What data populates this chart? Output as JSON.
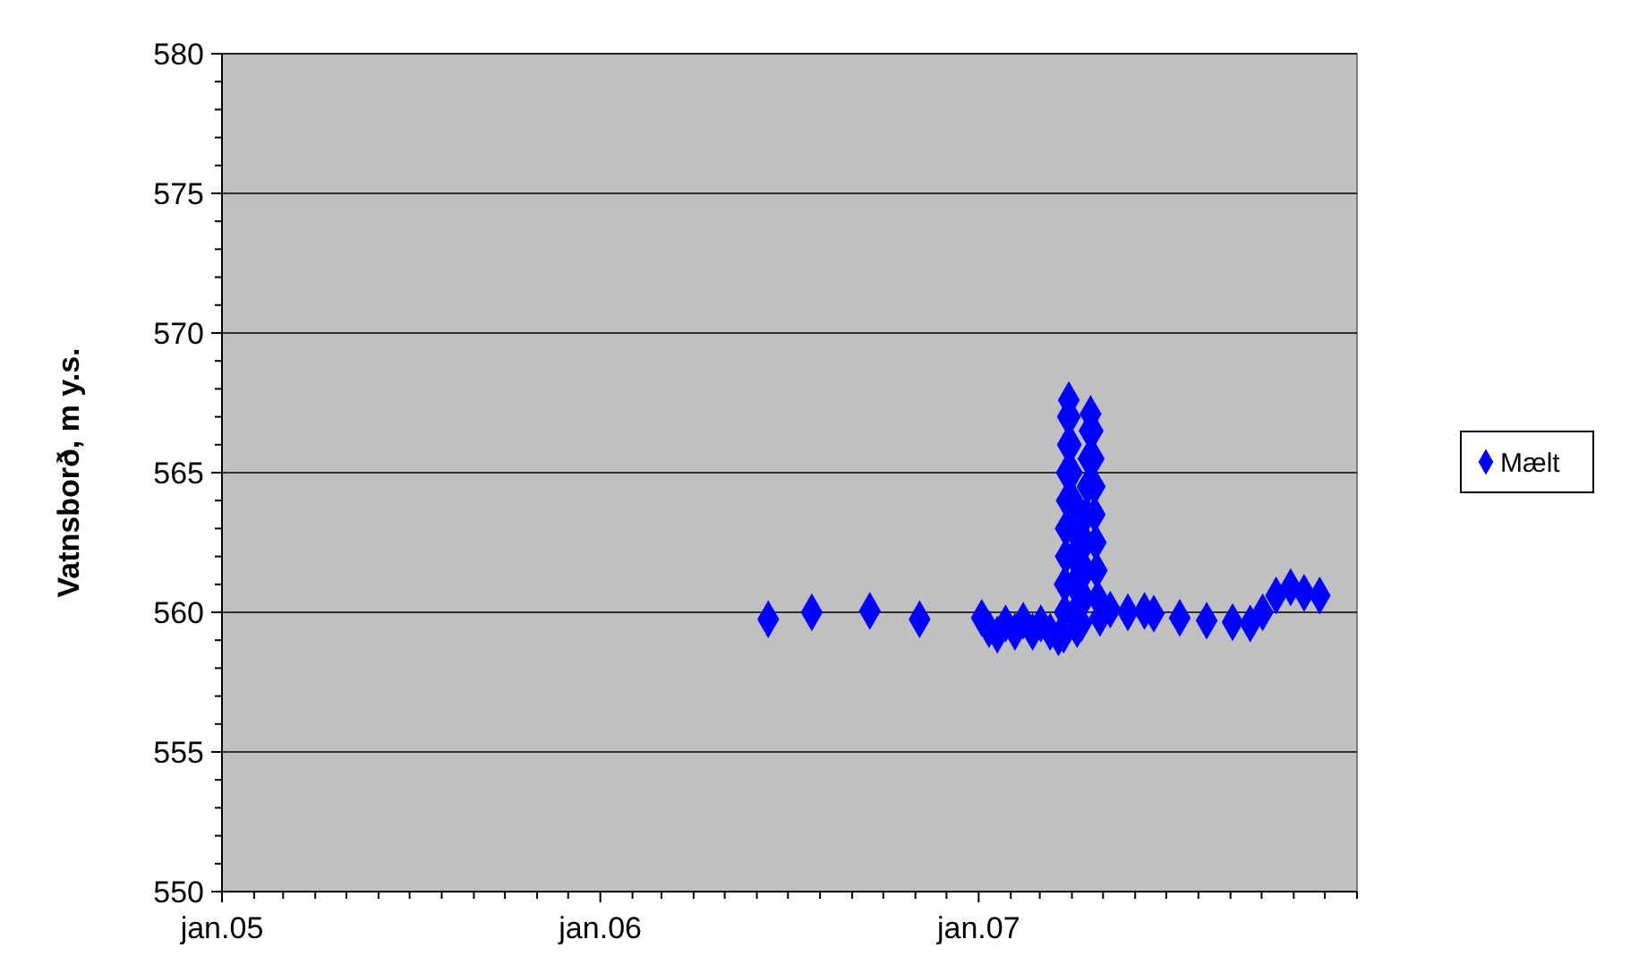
{
  "chart_data": {
    "type": "scatter",
    "ylabel": "Vatnsborð, m y.s.",
    "xlim": [
      "2005-01-01",
      "2008-01-01"
    ],
    "xticks": [
      {
        "value": "2005-01-01",
        "label": "jan.05"
      },
      {
        "value": "2005-02-01",
        "label": null
      },
      {
        "value": "2005-03-01",
        "label": null
      },
      {
        "value": "2005-04-01",
        "label": null
      },
      {
        "value": "2005-05-01",
        "label": null
      },
      {
        "value": "2005-06-01",
        "label": null
      },
      {
        "value": "2005-07-01",
        "label": null
      },
      {
        "value": "2005-08-01",
        "label": null
      },
      {
        "value": "2005-09-01",
        "label": null
      },
      {
        "value": "2005-10-01",
        "label": null
      },
      {
        "value": "2005-11-01",
        "label": null
      },
      {
        "value": "2005-12-01",
        "label": null
      },
      {
        "value": "2006-01-01",
        "label": "jan.06"
      },
      {
        "value": "2006-02-01",
        "label": null
      },
      {
        "value": "2006-03-01",
        "label": null
      },
      {
        "value": "2006-04-01",
        "label": null
      },
      {
        "value": "2006-05-01",
        "label": null
      },
      {
        "value": "2006-06-01",
        "label": null
      },
      {
        "value": "2006-07-01",
        "label": null
      },
      {
        "value": "2006-08-01",
        "label": null
      },
      {
        "value": "2006-09-01",
        "label": null
      },
      {
        "value": "2006-10-01",
        "label": null
      },
      {
        "value": "2006-11-01",
        "label": null
      },
      {
        "value": "2006-12-01",
        "label": null
      },
      {
        "value": "2007-01-01",
        "label": "jan.07"
      },
      {
        "value": "2007-02-01",
        "label": null
      },
      {
        "value": "2007-03-01",
        "label": null
      },
      {
        "value": "2007-04-01",
        "label": null
      },
      {
        "value": "2007-05-01",
        "label": null
      },
      {
        "value": "2007-06-01",
        "label": null
      },
      {
        "value": "2007-07-01",
        "label": null
      },
      {
        "value": "2007-08-01",
        "label": null
      },
      {
        "value": "2007-09-01",
        "label": null
      },
      {
        "value": "2007-10-01",
        "label": null
      },
      {
        "value": "2007-11-01",
        "label": null
      },
      {
        "value": "2007-12-01",
        "label": null
      },
      {
        "value": "2008-01-01",
        "label": null
      }
    ],
    "ylim": [
      550,
      580
    ],
    "yticks": [
      550,
      {
        "value": 551,
        "label": null
      },
      {
        "value": 552,
        "label": null
      },
      {
        "value": 553,
        "label": null
      },
      {
        "value": 554,
        "label": null
      },
      555,
      {
        "value": 556,
        "label": null
      },
      {
        "value": 557,
        "label": null
      },
      {
        "value": 558,
        "label": null
      },
      {
        "value": 559,
        "label": null
      },
      560,
      {
        "value": 561,
        "label": null
      },
      {
        "value": 562,
        "label": null
      },
      {
        "value": 563,
        "label": null
      },
      {
        "value": 564,
        "label": null
      },
      565,
      {
        "value": 566,
        "label": null
      },
      {
        "value": 567,
        "label": null
      },
      {
        "value": 568,
        "label": null
      },
      {
        "value": 569,
        "label": null
      },
      570,
      {
        "value": 571,
        "label": null
      },
      {
        "value": 572,
        "label": null
      },
      {
        "value": 573,
        "label": null
      },
      {
        "value": 574,
        "label": null
      },
      575,
      {
        "value": 576,
        "label": null
      },
      {
        "value": 577,
        "label": null
      },
      {
        "value": 578,
        "label": null
      },
      {
        "value": 579,
        "label": null
      },
      580
    ],
    "grid": "y",
    "legend": "right",
    "marker": "diamond",
    "series": [
      {
        "name": "Mælt",
        "color": "#0000ff",
        "x": [
          "2006-06-12",
          "2006-07-24",
          "2006-09-18",
          "2006-11-05",
          "2007-01-04",
          "2007-01-11",
          "2007-01-19",
          "2007-01-27",
          "2007-02-05",
          "2007-02-13",
          "2007-02-22",
          "2007-03-02",
          "2007-03-11",
          "2007-03-19",
          "2007-03-24",
          "2007-03-25",
          "2007-03-25",
          "2007-03-26",
          "2007-03-26",
          "2007-03-27",
          "2007-03-27",
          "2007-03-28",
          "2007-03-28",
          "2007-03-29",
          "2007-03-30",
          "2007-03-31",
          "2007-04-01",
          "2007-04-02",
          "2007-04-02",
          "2007-04-03",
          "2007-04-03",
          "2007-04-04",
          "2007-04-06",
          "2007-04-10",
          "2007-04-13",
          "2007-04-14",
          "2007-04-14",
          "2007-04-15",
          "2007-04-16",
          "2007-04-17",
          "2007-04-18",
          "2007-04-19",
          "2007-04-21",
          "2007-04-22",
          "2007-04-23",
          "2007-04-23",
          "2007-04-24",
          "2007-04-25",
          "2007-04-26",
          "2007-04-28",
          "2007-05-08",
          "2007-05-25",
          "2007-06-10",
          "2007-06-19",
          "2007-07-14",
          "2007-08-09",
          "2007-09-03",
          "2007-09-20",
          "2007-10-02",
          "2007-10-15",
          "2007-10-29",
          "2007-11-11",
          "2007-11-26"
        ],
        "values": [
          559.75,
          560.0,
          560.05,
          559.75,
          559.8,
          559.4,
          559.2,
          559.6,
          559.3,
          559.7,
          559.3,
          559.6,
          559.3,
          559.1,
          559.2,
          560.0,
          561,
          562,
          563,
          564,
          565,
          566,
          567,
          567.6,
          567.0,
          566,
          565,
          564,
          563,
          562,
          561,
          560,
          559.4,
          559.6,
          560.5,
          561.5,
          562.5,
          563.5,
          564.5,
          565.5,
          566.5,
          567.1,
          566.5,
          565.5,
          564.5,
          563.5,
          562.5,
          561.5,
          560.5,
          559.8,
          560.1,
          560.0,
          560.05,
          559.95,
          559.8,
          559.7,
          559.65,
          559.6,
          560.0,
          560.6,
          560.9,
          560.7,
          560.6
        ]
      }
    ]
  }
}
